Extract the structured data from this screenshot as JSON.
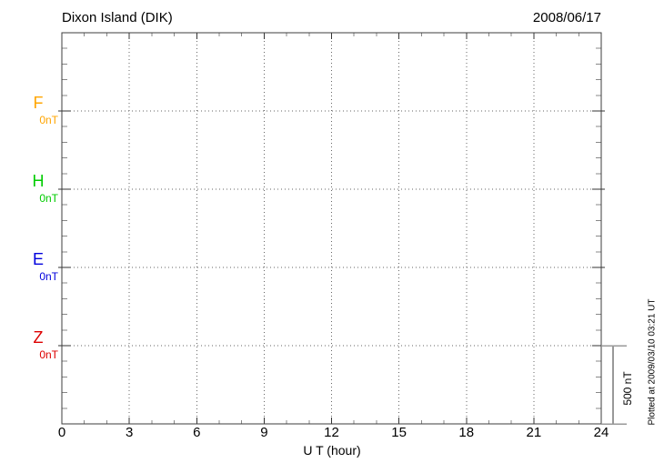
{
  "header": {
    "title": "Dixon Island (DIK)",
    "date": "2008/06/17"
  },
  "footer_note": "Plotted at 2009/03/10 03:21 UT",
  "chart_data": {
    "type": "line",
    "title": "Dixon Island (DIK)",
    "date": "2008/06/17",
    "xlabel": "U T (hour)",
    "x_range": [
      0,
      24
    ],
    "x_major_ticks": [
      0,
      3,
      6,
      9,
      12,
      15,
      18,
      21,
      24
    ],
    "x_minor_tick_every_hours": 1,
    "grid": {
      "vertical_dotted_every_hours": 3,
      "horizontal_dotted_at": "component baselines",
      "style": "dotted"
    },
    "series": [
      {
        "name": "F",
        "color": "#FFA500",
        "baseline_label": "0nT",
        "baseline_nT": 0,
        "values": []
      },
      {
        "name": "H",
        "color": "#00CC00",
        "baseline_label": "0nT",
        "baseline_nT": 0,
        "values": []
      },
      {
        "name": "E",
        "color": "#0000DD",
        "baseline_label": "0nT",
        "baseline_nT": 0,
        "values": []
      },
      {
        "name": "Z",
        "color": "#DD0000",
        "baseline_label": "0nT",
        "baseline_nT": 0,
        "values": []
      }
    ],
    "y_scale": {
      "label": "500 nT",
      "nT_per_division": 500
    },
    "legend_position": "left",
    "plotted_note": "Plotted at 2009/03/10 03:21 UT"
  },
  "colors": {
    "frame": "#3c3c3c",
    "major_tick": "#333333",
    "minor_tick": "#888888",
    "gridline": "#666666",
    "scale_bar": "#999999"
  }
}
